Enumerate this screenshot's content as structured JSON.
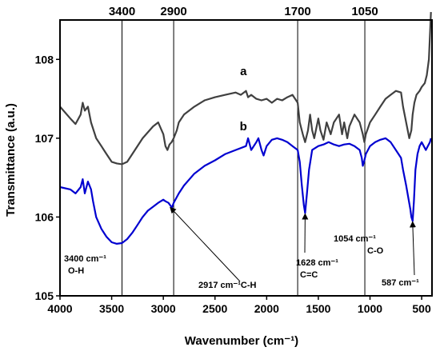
{
  "chart_data": {
    "type": "line",
    "xlabel": "Wavenumber (cm⁻¹)",
    "ylabel": "Transmittance (a.u.)",
    "xlim": [
      4000,
      400
    ],
    "ylim": [
      105,
      108.5
    ],
    "xticks": [
      4000,
      3500,
      3000,
      2500,
      2000,
      1500,
      1000,
      500
    ],
    "yticks": [
      105,
      106,
      107,
      108
    ],
    "reference_lines": [
      3400,
      2900,
      1700,
      1050
    ],
    "colors": {
      "a": "#404040",
      "b": "#0000d0"
    },
    "series": [
      {
        "name": "a",
        "x": [
          4000,
          3900,
          3850,
          3800,
          3780,
          3760,
          3730,
          3700,
          3650,
          3600,
          3550,
          3500,
          3450,
          3400,
          3350,
          3300,
          3200,
          3100,
          3050,
          3000,
          2980,
          2960,
          2940,
          2920,
          2900,
          2870,
          2850,
          2800,
          2700,
          2600,
          2500,
          2400,
          2300,
          2250,
          2200,
          2180,
          2150,
          2100,
          2050,
          2000,
          1950,
          1900,
          1850,
          1800,
          1750,
          1700,
          1680,
          1650,
          1628,
          1600,
          1580,
          1560,
          1540,
          1500,
          1480,
          1450,
          1420,
          1380,
          1350,
          1300,
          1270,
          1250,
          1220,
          1200,
          1150,
          1100,
          1070,
          1054,
          1040,
          1000,
          950,
          900,
          850,
          800,
          750,
          700,
          680,
          650,
          620,
          600,
          587,
          570,
          550,
          520,
          500,
          470,
          450,
          430,
          410
        ],
        "y": [
          107.4,
          107.25,
          107.18,
          107.3,
          107.45,
          107.35,
          107.4,
          107.2,
          107.0,
          106.9,
          106.8,
          106.7,
          106.68,
          106.67,
          106.7,
          106.8,
          107.0,
          107.15,
          107.2,
          107.05,
          106.9,
          106.85,
          106.92,
          106.95,
          107.0,
          107.1,
          107.2,
          107.3,
          107.4,
          107.48,
          107.52,
          107.55,
          107.58,
          107.55,
          107.6,
          107.52,
          107.55,
          107.5,
          107.48,
          107.5,
          107.45,
          107.5,
          107.48,
          107.52,
          107.55,
          107.45,
          107.2,
          107.05,
          106.95,
          107.1,
          107.3,
          107.1,
          107.0,
          107.25,
          107.1,
          106.98,
          107.2,
          107.05,
          107.2,
          107.3,
          107.05,
          107.2,
          107.0,
          107.15,
          107.3,
          107.2,
          107.05,
          106.95,
          107.05,
          107.2,
          107.3,
          107.4,
          107.5,
          107.55,
          107.6,
          107.58,
          107.4,
          107.2,
          107.0,
          107.1,
          107.3,
          107.45,
          107.55,
          107.6,
          107.65,
          107.7,
          107.8,
          108.0,
          108.6
        ]
      },
      {
        "name": "b",
        "x": [
          4000,
          3900,
          3850,
          3800,
          3780,
          3760,
          3730,
          3700,
          3680,
          3650,
          3600,
          3550,
          3500,
          3450,
          3400,
          3350,
          3300,
          3250,
          3200,
          3150,
          3100,
          3050,
          3000,
          2980,
          2950,
          2917,
          2900,
          2850,
          2800,
          2700,
          2600,
          2500,
          2400,
          2300,
          2200,
          2180,
          2150,
          2100,
          2080,
          2050,
          2030,
          2000,
          1950,
          1900,
          1850,
          1800,
          1750,
          1700,
          1680,
          1660,
          1640,
          1628,
          1610,
          1590,
          1560,
          1500,
          1450,
          1400,
          1350,
          1300,
          1250,
          1200,
          1150,
          1100,
          1080,
          1070,
          1054,
          1040,
          1000,
          950,
          900,
          850,
          800,
          750,
          700,
          680,
          650,
          630,
          610,
          600,
          587,
          575,
          560,
          540,
          520,
          500,
          480,
          460,
          440,
          420,
          410
        ],
        "y": [
          106.38,
          106.35,
          106.3,
          106.38,
          106.48,
          106.3,
          106.45,
          106.35,
          106.2,
          106.0,
          105.85,
          105.75,
          105.68,
          105.66,
          105.67,
          105.72,
          105.8,
          105.9,
          106.0,
          106.08,
          106.13,
          106.18,
          106.22,
          106.2,
          106.18,
          106.12,
          106.18,
          106.3,
          106.4,
          106.55,
          106.65,
          106.72,
          106.8,
          106.85,
          106.9,
          107.0,
          106.85,
          106.95,
          107.0,
          106.85,
          106.78,
          106.9,
          106.98,
          107.0,
          106.98,
          106.95,
          106.9,
          106.85,
          106.7,
          106.4,
          106.15,
          106.05,
          106.3,
          106.6,
          106.85,
          106.9,
          106.92,
          106.95,
          106.92,
          106.9,
          106.92,
          106.93,
          106.9,
          106.85,
          106.75,
          106.65,
          106.72,
          106.8,
          106.9,
          106.95,
          106.98,
          107.0,
          106.95,
          106.85,
          106.75,
          106.6,
          106.4,
          106.25,
          106.1,
          106.0,
          105.95,
          106.2,
          106.6,
          106.8,
          106.9,
          106.95,
          106.9,
          106.85,
          106.9,
          106.95,
          107.0
        ]
      }
    ],
    "series_labels": [
      "a",
      "b"
    ],
    "annotations": [
      {
        "line1": "3400 cm⁻¹",
        "line2": "O-H",
        "x": 3400
      },
      {
        "line1": "2917 cm⁻¹C-H",
        "line2": "",
        "x": 2917
      },
      {
        "line1": "1628 cm⁻¹",
        "line2": "C=C",
        "x": 1628
      },
      {
        "line1": "1054 cm⁻¹",
        "line2": "C-O",
        "x": 1054
      },
      {
        "line1": "587 cm⁻¹",
        "line2": "",
        "x": 587
      }
    ]
  }
}
